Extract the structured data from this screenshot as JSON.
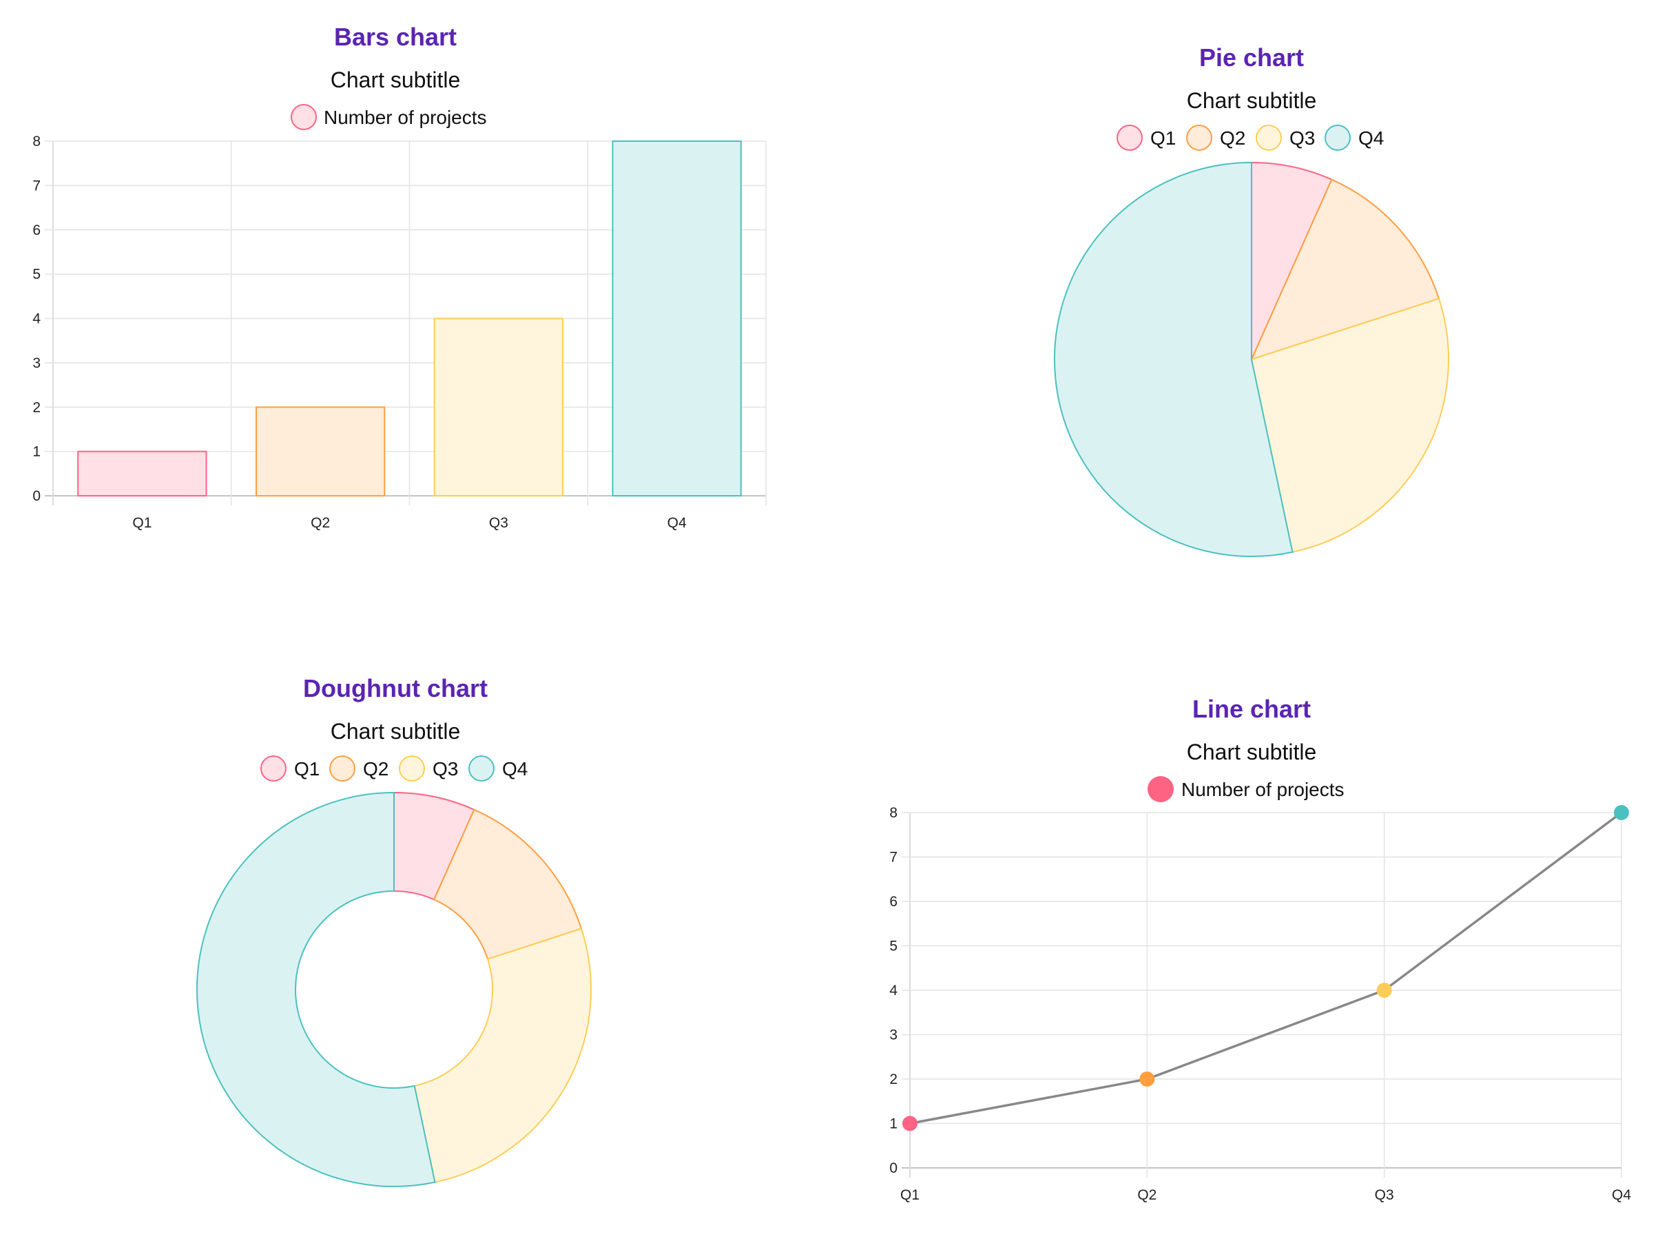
{
  "colors": {
    "q1_border": "#ff6384",
    "q1_fill": "#ffe0e6",
    "q2_border": "#ff9f40",
    "q2_fill": "#ffecd9",
    "q3_border": "#ffcd56",
    "q3_fill": "#fff5dd",
    "q4_border": "#4bc0c0",
    "q4_fill": "#dbf2f2",
    "line": "#888888",
    "title": "#5a24b4"
  },
  "chart_data": [
    {
      "type": "bar",
      "title": "Bars chart",
      "subtitle": "Chart subtitle",
      "legend": [
        "Number of projects"
      ],
      "categories": [
        "Q1",
        "Q2",
        "Q3",
        "Q4"
      ],
      "values": [
        1,
        2,
        4,
        8
      ],
      "yticks": [
        "0",
        "1",
        "2",
        "3",
        "4",
        "5",
        "6",
        "7",
        "8"
      ],
      "ylim": [
        0,
        8
      ],
      "grid": true,
      "legend_position": "top"
    },
    {
      "type": "pie",
      "title": "Pie chart",
      "subtitle": "Chart subtitle",
      "legend": [
        "Q1",
        "Q2",
        "Q3",
        "Q4"
      ],
      "categories": [
        "Q1",
        "Q2",
        "Q3",
        "Q4"
      ],
      "values": [
        1,
        2,
        4,
        8
      ],
      "legend_position": "top"
    },
    {
      "type": "doughnut",
      "title": "Doughnut chart",
      "subtitle": "Chart subtitle",
      "legend": [
        "Q1",
        "Q2",
        "Q3",
        "Q4"
      ],
      "categories": [
        "Q1",
        "Q2",
        "Q3",
        "Q4"
      ],
      "values": [
        1,
        2,
        4,
        8
      ],
      "legend_position": "top"
    },
    {
      "type": "line",
      "title": "Line chart",
      "subtitle": "Chart subtitle",
      "legend": [
        "Number of projects"
      ],
      "categories": [
        "Q1",
        "Q2",
        "Q3",
        "Q4"
      ],
      "values": [
        1,
        2,
        4,
        8
      ],
      "yticks": [
        "0",
        "1",
        "2",
        "3",
        "4",
        "5",
        "6",
        "7",
        "8"
      ],
      "ylim": [
        0,
        8
      ],
      "grid": true,
      "legend_position": "top"
    }
  ]
}
